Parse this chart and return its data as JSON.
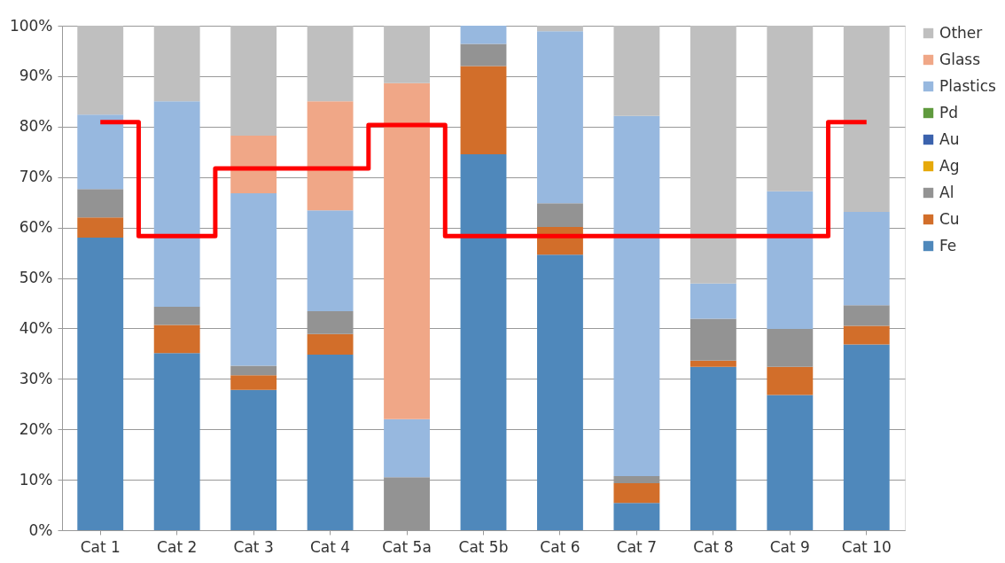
{
  "chart_data": {
    "type": "bar",
    "stacked": true,
    "categories": [
      "Cat 1",
      "Cat 2",
      "Cat 3",
      "Cat 4",
      "Cat 5a",
      "Cat 5b",
      "Cat 6",
      "Cat 7",
      "Cat 8",
      "Cat 9",
      "Cat 10"
    ],
    "series": [
      {
        "name": "Fe",
        "color": "#4f88bb",
        "values": [
          58,
          35.1,
          27.8,
          34.8,
          0,
          74.5,
          54.6,
          5.4,
          32.4,
          26.8,
          36.8
        ]
      },
      {
        "name": "Cu",
        "color": "#d26e2a",
        "values": [
          4,
          5.6,
          2.9,
          4.1,
          0,
          17.5,
          5.5,
          3.9,
          1.2,
          5.6,
          3.7
        ]
      },
      {
        "name": "Al",
        "color": "#939393",
        "values": [
          5.6,
          3.6,
          1.9,
          4.5,
          10.5,
          4.4,
          4.7,
          1.4,
          8.3,
          7.5,
          4.1
        ]
      },
      {
        "name": "Ag",
        "color": "#e6a90a",
        "values": [
          0,
          0,
          0,
          0,
          0,
          0,
          0,
          0,
          0,
          0,
          0
        ]
      },
      {
        "name": "Au",
        "color": "#3b62ad",
        "values": [
          0,
          0,
          0,
          0,
          0,
          0,
          0,
          0,
          0,
          0,
          0
        ]
      },
      {
        "name": "Pd",
        "color": "#5f9a3e",
        "values": [
          0,
          0,
          0,
          0,
          0,
          0,
          0,
          0,
          0,
          0,
          0
        ]
      },
      {
        "name": "Plastics",
        "color": "#97b8df",
        "values": [
          14.8,
          40.7,
          34.2,
          20.0,
          11.5,
          3.6,
          34.1,
          71.4,
          7.0,
          27.3,
          18.5
        ]
      },
      {
        "name": "Glass",
        "color": "#f0a787",
        "values": [
          0,
          0,
          11.4,
          21.6,
          66.6,
          0,
          0,
          0,
          0,
          0,
          0
        ]
      },
      {
        "name": "Other",
        "color": "#bfbfbf",
        "values": [
          17.6,
          15,
          21.8,
          15,
          11.4,
          0,
          1.1,
          17.9,
          51.1,
          32.8,
          36.9
        ]
      },
      {
        "type": "step",
        "color": "#ff0000",
        "values": [
          80.9,
          58.3,
          71.7,
          71.7,
          80.3,
          58.3,
          58.3,
          58.3,
          58.3,
          58.3,
          80.9
        ]
      }
    ],
    "ylim": [
      0,
      100
    ],
    "yticks": [
      {
        "value": 0,
        "label": "0%"
      },
      {
        "value": 10,
        "label": "10%"
      },
      {
        "value": 20,
        "label": "20%"
      },
      {
        "value": 30,
        "label": "30%"
      },
      {
        "value": 40,
        "label": "40%"
      },
      {
        "value": 50,
        "label": "50%"
      },
      {
        "value": 60,
        "label": "60%"
      },
      {
        "value": 70,
        "label": "70%"
      },
      {
        "value": 80,
        "label": "80%"
      },
      {
        "value": 90,
        "label": "90%"
      },
      {
        "value": 100,
        "label": "100%"
      }
    ],
    "grid": "y",
    "legend": "right"
  }
}
